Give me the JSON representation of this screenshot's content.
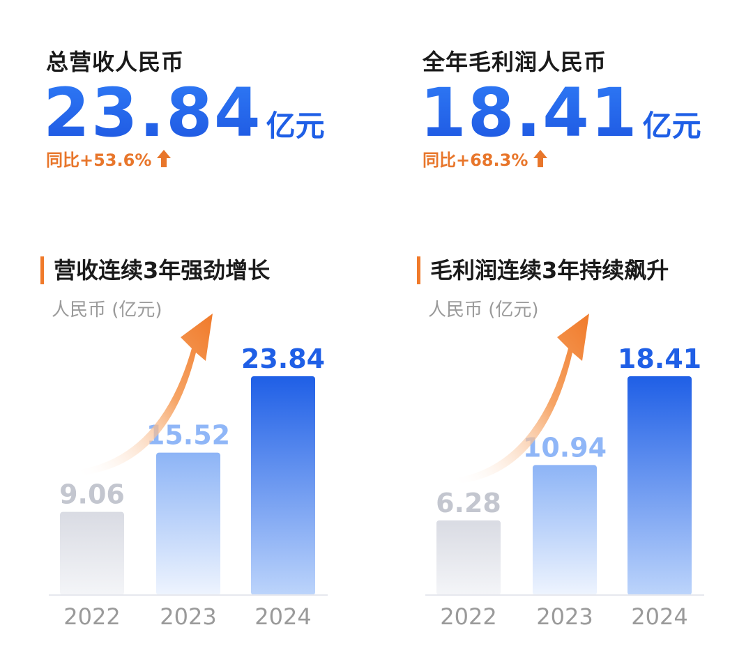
{
  "panels": [
    {
      "kpi_label": "总营收人民币",
      "kpi_value": "23.84",
      "kpi_unit": "亿元",
      "yoy": "同比+53.6%",
      "section_title": "营收连续3年强劲增长",
      "unit_label": "人民币 (亿元)"
    },
    {
      "kpi_label": "全年毛利润人民币",
      "kpi_value": "18.41",
      "kpi_unit": "亿元",
      "yoy": "同比+68.3%",
      "section_title": "毛利润连续3年持续飙升",
      "unit_label": "人民币 (亿元)"
    }
  ],
  "colors": {
    "accent_blue": "#1f5fe6",
    "accent_orange": "#f07a2a",
    "gray_bar": "#c9ccd6",
    "light_blue_bar": "#8fb6f7",
    "tick_gray": "#9a9a9a"
  },
  "chart_data": [
    {
      "type": "bar",
      "title": "营收连续3年强劲增长",
      "ylabel": "人民币 (亿元)",
      "categories": [
        "2022",
        "2023",
        "2024"
      ],
      "values": [
        9.06,
        15.52,
        23.84
      ],
      "value_labels": [
        "9.06",
        "15.52",
        "23.84"
      ],
      "ylim": [
        0,
        23.84
      ],
      "grid": false,
      "trend_arrow": true
    },
    {
      "type": "bar",
      "title": "毛利润连续3年持续飙升",
      "ylabel": "人民币 (亿元)",
      "categories": [
        "2022",
        "2023",
        "2024"
      ],
      "values": [
        6.28,
        10.94,
        18.41
      ],
      "value_labels": [
        "6.28",
        "10.94",
        "18.41"
      ],
      "ylim": [
        0,
        18.41
      ],
      "grid": false,
      "trend_arrow": true
    }
  ]
}
